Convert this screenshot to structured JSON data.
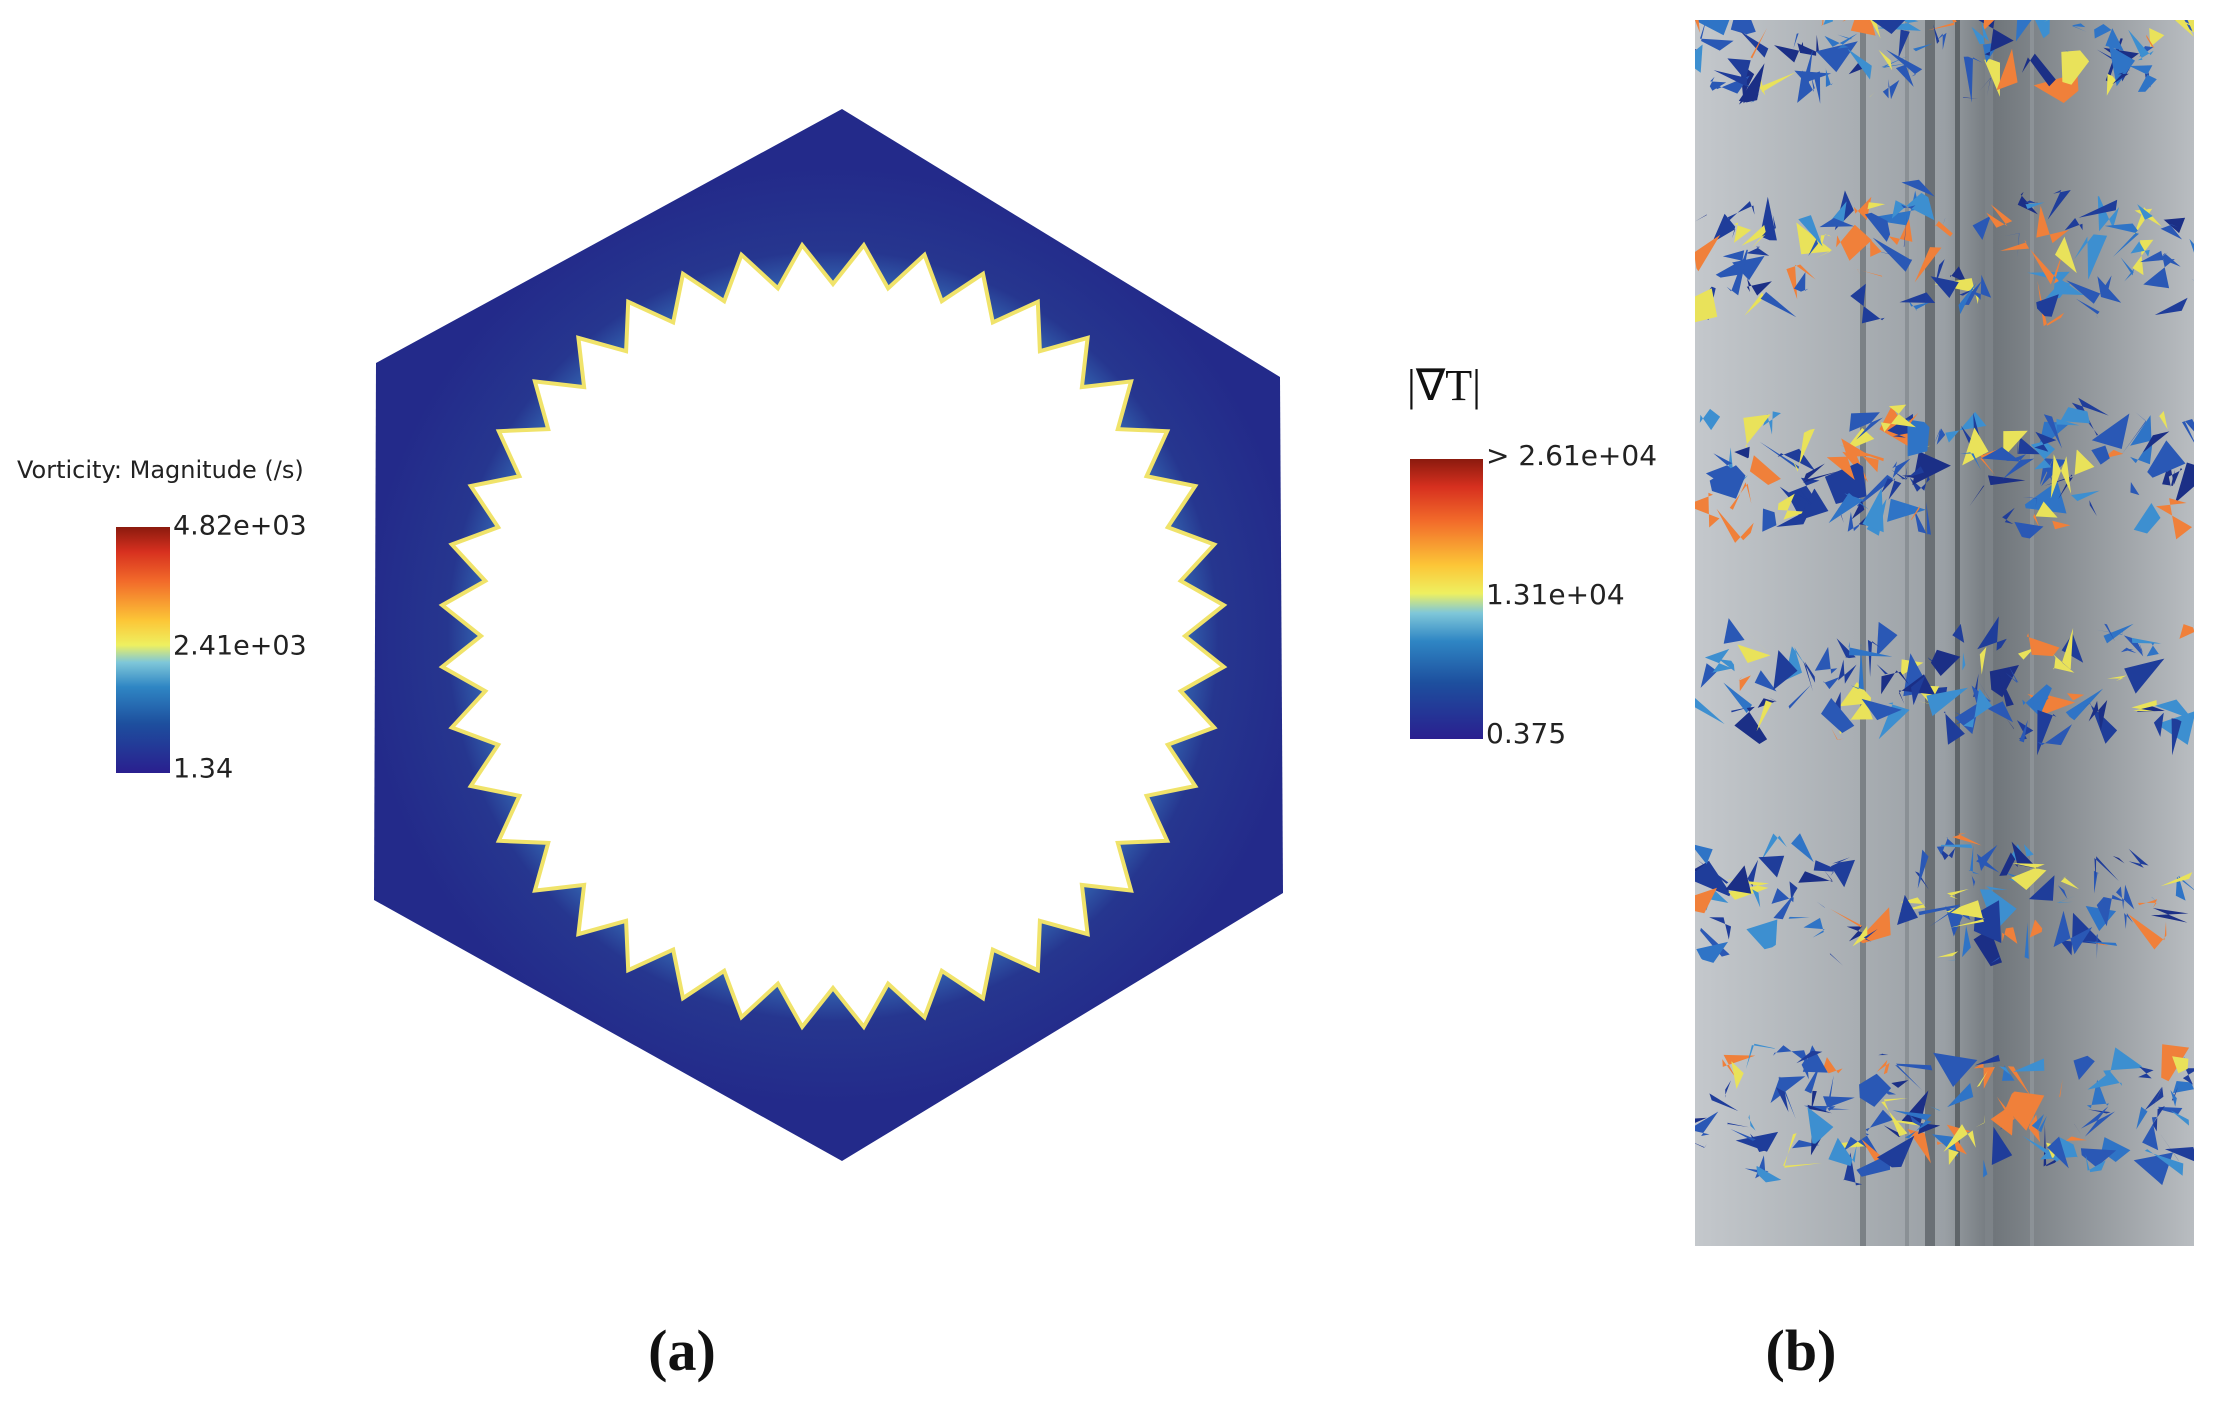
{
  "panels": [
    {
      "label": "(a)",
      "colorbar": {
        "title": "Vorticity: Magnitude (/s)",
        "labels": [
          "4.82e+03",
          "2.41e+03",
          "1.34"
        ]
      }
    },
    {
      "label": "(b)",
      "colorbar": {
        "title": "|∇T|",
        "labels": [
          "> 2.61e+04",
          "1.31e+04",
          "0.375"
        ]
      }
    }
  ]
}
